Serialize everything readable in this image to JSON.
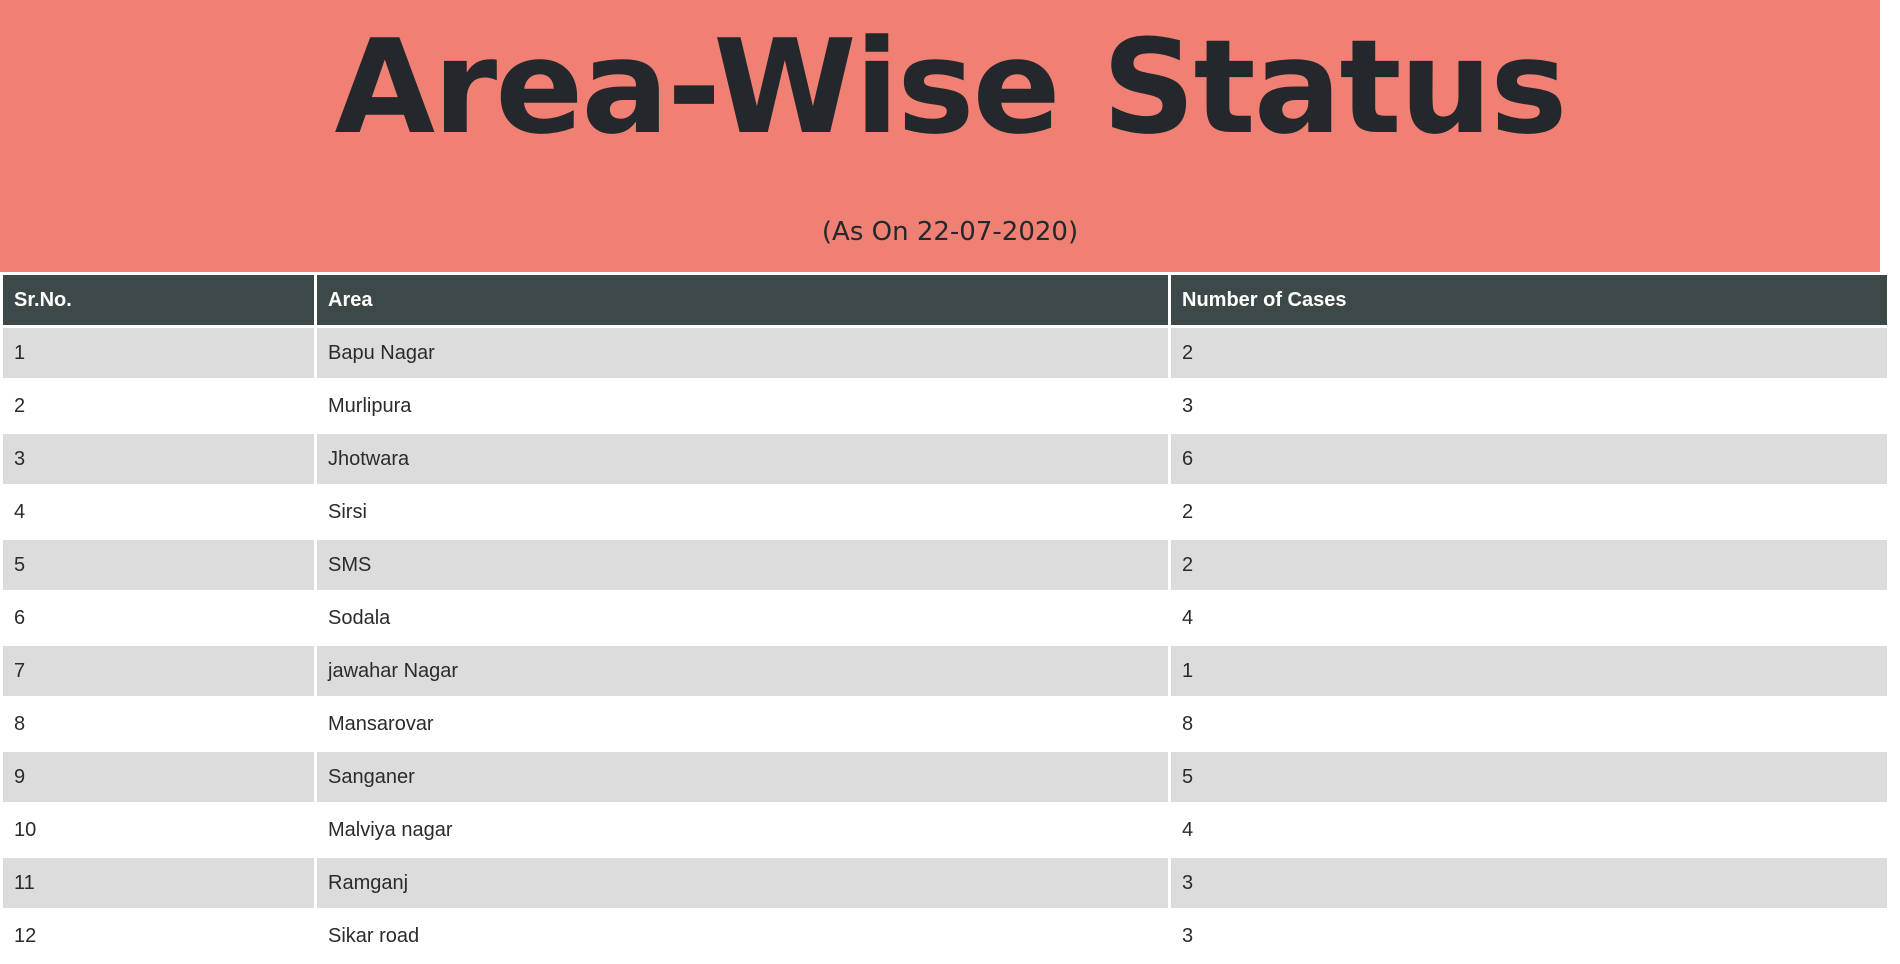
{
  "header": {
    "title": "Area-Wise Status",
    "subtitle": "(As On 22-07-2020)"
  },
  "table": {
    "columns": [
      "Sr.No.",
      "Area",
      "Number of Cases"
    ],
    "rows": [
      {
        "sr": "1",
        "area": "Bapu Nagar",
        "cases": "2"
      },
      {
        "sr": "2",
        "area": "Murlipura",
        "cases": "3"
      },
      {
        "sr": "3",
        "area": "Jhotwara",
        "cases": "6"
      },
      {
        "sr": "4",
        "area": "Sirsi",
        "cases": "2"
      },
      {
        "sr": "5",
        "area": "SMS",
        "cases": "2"
      },
      {
        "sr": "6",
        "area": "Sodala",
        "cases": "4"
      },
      {
        "sr": "7",
        "area": "jawahar Nagar",
        "cases": "1"
      },
      {
        "sr": "8",
        "area": "Mansarovar",
        "cases": "8"
      },
      {
        "sr": "9",
        "area": "Sanganer",
        "cases": "5"
      },
      {
        "sr": "10",
        "area": "Malviya nagar",
        "cases": "4"
      },
      {
        "sr": "11",
        "area": "Ramganj",
        "cases": "3"
      },
      {
        "sr": "12",
        "area": "Sikar road",
        "cases": "3"
      }
    ]
  },
  "colors": {
    "banner": "#f08073",
    "table_header": "#3d4849",
    "row_shaded": "#dcdcdc",
    "row_plain": "#ffffff"
  }
}
